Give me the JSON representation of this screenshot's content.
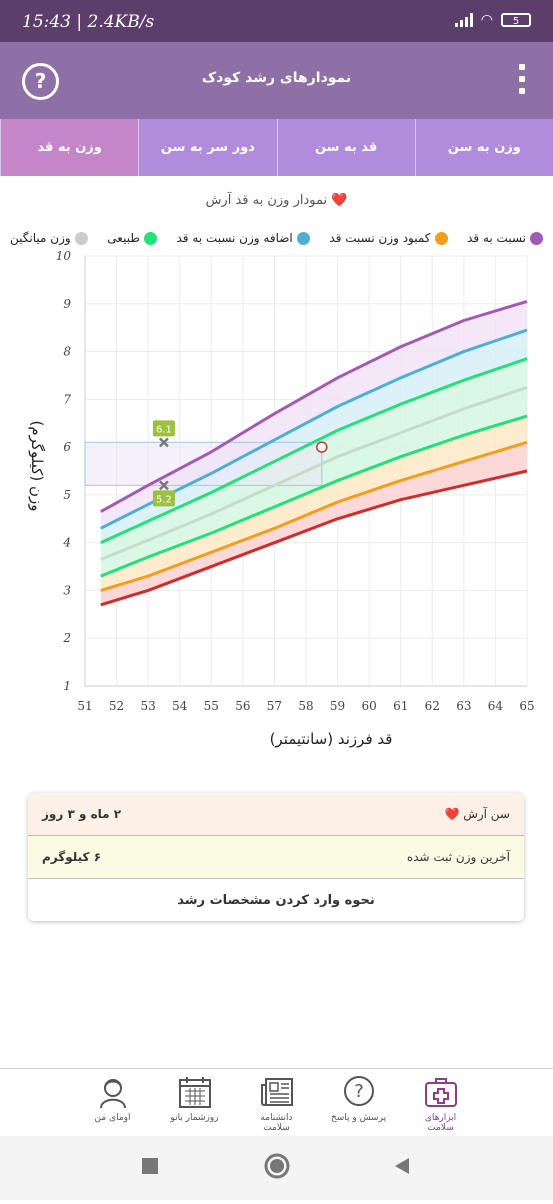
{
  "status": {
    "time": "15:43 | 2.4KB/s",
    "battery": "5"
  },
  "header": {
    "title": "نمودارهای رشد کودک"
  },
  "tabs": [
    {
      "label": "وزن به سن"
    },
    {
      "label": "قد به سن"
    },
    {
      "label": "دور سر به سن"
    },
    {
      "label": "وزن به قد"
    }
  ],
  "chart_title": "نمودار وزن به قد آرش ❤️",
  "legend": [
    {
      "label": "نسبت به قد",
      "color": "#a35ab5"
    },
    {
      "label": "کمبود وزن نسبت قد",
      "color": "#f29e1c"
    },
    {
      "label": "اضافه وزن نسبت به قد",
      "color": "#4db0d3"
    },
    {
      "label": "طبیعی",
      "color": "#22e07a"
    },
    {
      "label": "وزن میانگین",
      "color": "#cccccc"
    }
  ],
  "chart_data": {
    "type": "line",
    "xlabel": "قد فرزند (سانتیمتر)",
    "ylabel": "وزن (کیلوگرم)",
    "xlim": [
      51,
      65
    ],
    "ylim": [
      1,
      10
    ],
    "xticks": [
      "51",
      "52",
      "53",
      "54",
      "55",
      "56",
      "57",
      "58",
      "59",
      "60",
      "61",
      "62",
      "63",
      "64",
      "65"
    ],
    "yticks": [
      "1",
      "2",
      "3",
      "4",
      "5",
      "6",
      "7",
      "8",
      "9",
      "10"
    ],
    "x": [
      51.5,
      53,
      55,
      57,
      59,
      61,
      63,
      65
    ],
    "series": [
      {
        "color": "#d32a2a",
        "values": [
          2.7,
          3.0,
          3.5,
          4.0,
          4.5,
          4.9,
          5.2,
          5.5
        ]
      },
      {
        "color": "#f29e1c",
        "values": [
          3.0,
          3.3,
          3.8,
          4.3,
          4.85,
          5.3,
          5.7,
          6.1
        ]
      },
      {
        "color": "#22e07a",
        "values": [
          3.3,
          3.7,
          4.2,
          4.75,
          5.3,
          5.8,
          6.25,
          6.65
        ]
      },
      {
        "color": "#c5dcc9",
        "values": [
          3.65,
          4.05,
          4.6,
          5.2,
          5.8,
          6.3,
          6.8,
          7.25
        ]
      },
      {
        "color": "#22e07a",
        "values": [
          4.0,
          4.45,
          5.05,
          5.7,
          6.35,
          6.9,
          7.4,
          7.85
        ]
      },
      {
        "color": "#4db0d3",
        "values": [
          4.3,
          4.8,
          5.45,
          6.15,
          6.85,
          7.45,
          8.0,
          8.45
        ]
      },
      {
        "color": "#a35ab5",
        "values": [
          4.65,
          5.2,
          5.9,
          6.7,
          7.45,
          8.1,
          8.65,
          9.05
        ]
      }
    ],
    "bands": [
      {
        "lower": 0,
        "upper": 1,
        "color": "#fbd1d1"
      },
      {
        "lower": 1,
        "upper": 2,
        "color": "#fde9c6"
      },
      {
        "lower": 2,
        "upper": 4,
        "color": "#d3f7e1"
      },
      {
        "lower": 4,
        "upper": 5,
        "color": "#d7f0f7"
      },
      {
        "lower": 5,
        "upper": 6,
        "color": "#f2e3f6"
      }
    ],
    "markers": [
      {
        "x": 53.5,
        "y": 6.1,
        "label": "6.1"
      },
      {
        "x": 53.5,
        "y": 5.2,
        "label": "5.2"
      }
    ],
    "current_point": {
      "x": 58.5,
      "y": 6.0
    },
    "highlight_range": {
      "x": [
        51.0,
        58.5
      ],
      "y": [
        5.2,
        6.1
      ]
    }
  },
  "summary": {
    "age_label": "سن آرش ❤️",
    "age_value": "۲ ماه و ۳ روز",
    "weight_label": "آخرین وزن ثبت شده",
    "weight_value": "۶ کیلوگرم",
    "help_link": "نحوه وارد کردن مشخصات رشد"
  },
  "nav": [
    {
      "label": "اومای من"
    },
    {
      "label": "روزشمار بانو"
    },
    {
      "label": "دانشنامه سلامت"
    },
    {
      "label": "پرسش و پاسخ"
    },
    {
      "label": "ابزارهای سلامت"
    }
  ]
}
